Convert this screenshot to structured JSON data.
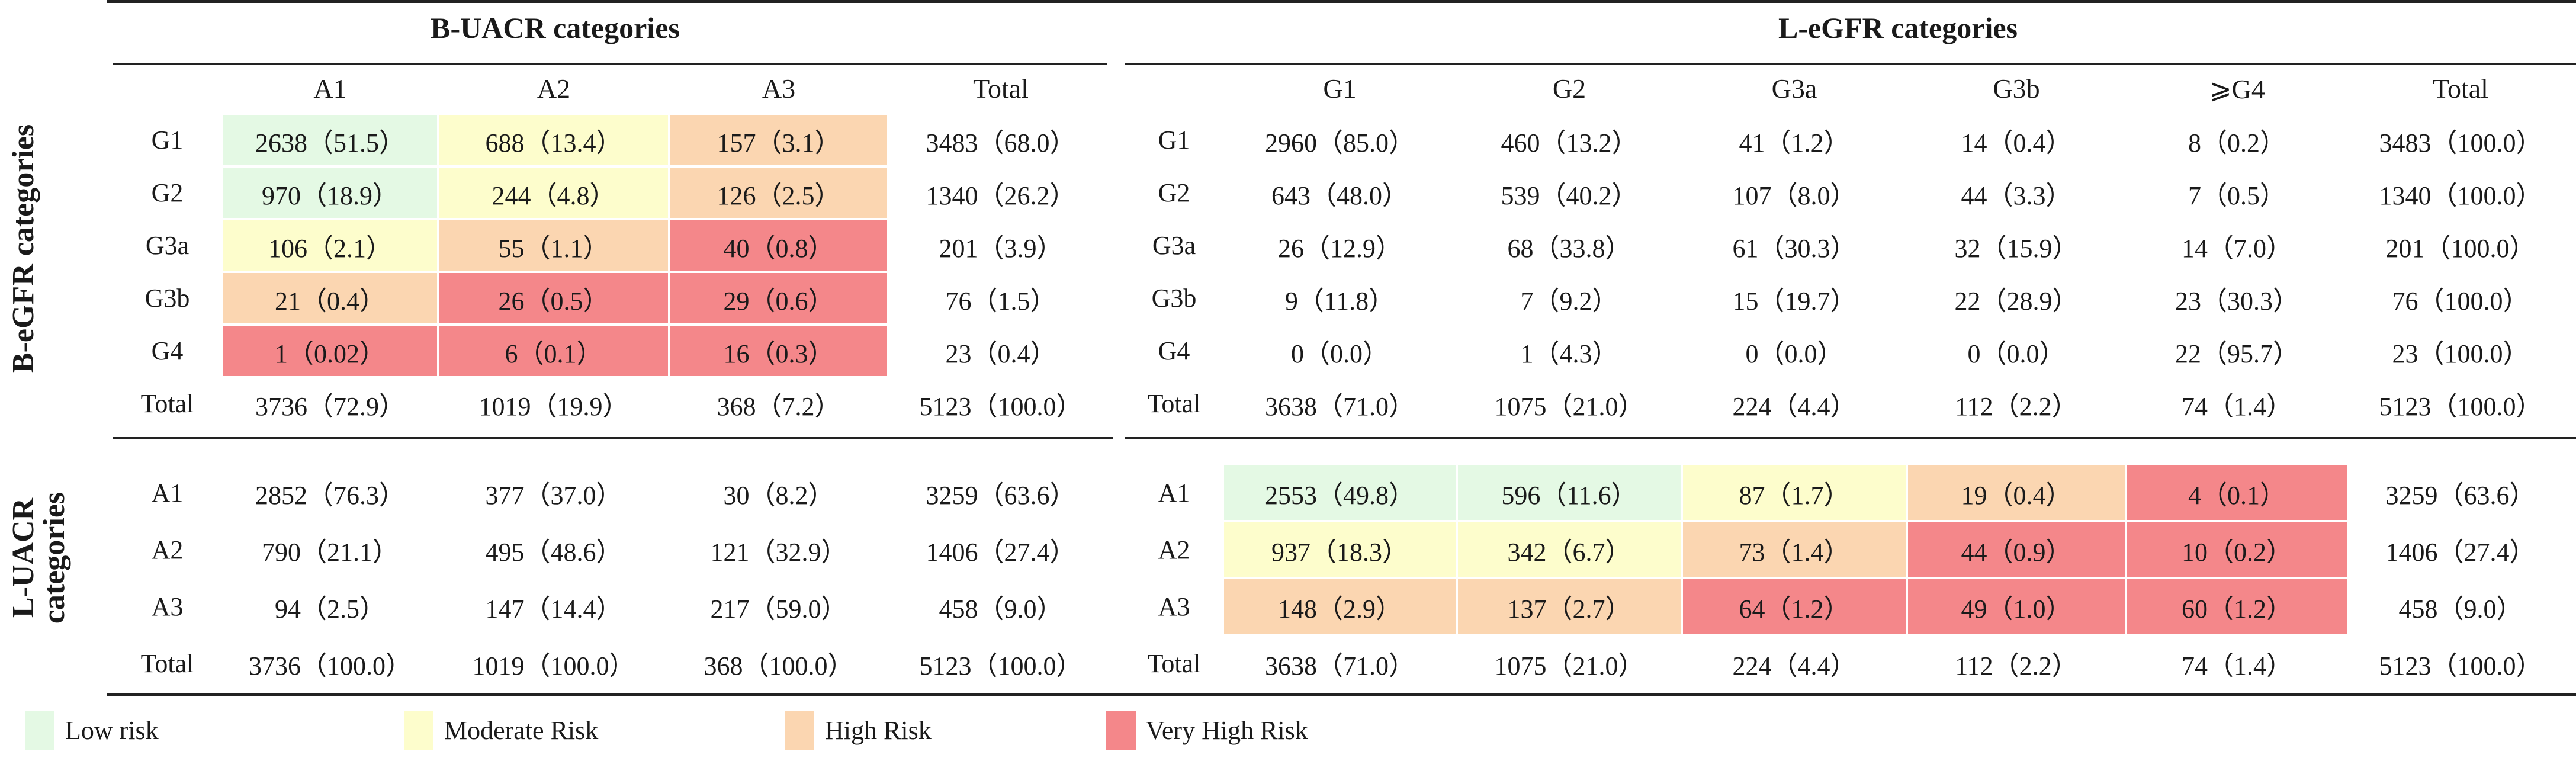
{
  "colors": {
    "low": "#e4f9e4",
    "moderate": "#fdfdcc",
    "high": "#fbd6b1",
    "very_high": "#f4878a"
  },
  "left_top": {
    "title": "B-UACR categories",
    "columns": [
      "A1",
      "A2",
      "A3",
      "Total"
    ],
    "row_group_label": "B-eGFR categories",
    "rows": [
      {
        "label": "G1",
        "cells": [
          "2638（51.5）",
          "688（13.4）",
          "157（3.1）",
          "3483（68.0）"
        ],
        "risk": [
          "low",
          "moderate",
          "high",
          ""
        ]
      },
      {
        "label": "G2",
        "cells": [
          "970（18.9）",
          "244（4.8）",
          "126（2.5）",
          "1340（26.2）"
        ],
        "risk": [
          "low",
          "moderate",
          "high",
          ""
        ]
      },
      {
        "label": "G3a",
        "cells": [
          "106（2.1）",
          "55（1.1）",
          "40（0.8）",
          "201（3.9）"
        ],
        "risk": [
          "moderate",
          "high",
          "very_high",
          ""
        ]
      },
      {
        "label": "G3b",
        "cells": [
          "21（0.4）",
          "26（0.5）",
          "29（0.6）",
          "76（1.5）"
        ],
        "risk": [
          "high",
          "very_high",
          "very_high",
          ""
        ]
      },
      {
        "label": "G4",
        "cells": [
          "1（0.02）",
          "6（0.1）",
          "16（0.3）",
          "23（0.4）"
        ],
        "risk": [
          "very_high",
          "very_high",
          "very_high",
          ""
        ]
      },
      {
        "label": "Total",
        "cells": [
          "3736（72.9）",
          "1019（19.9）",
          "368（7.2）",
          "5123（100.0）"
        ],
        "risk": [
          "",
          "",
          "",
          ""
        ]
      }
    ]
  },
  "right_top": {
    "title": "L-eGFR categories",
    "columns": [
      "G1",
      "G2",
      "G3a",
      "G3b",
      "⩾G4",
      "Total"
    ],
    "rows": [
      {
        "label": "G1",
        "cells": [
          "2960（85.0）",
          "460（13.2）",
          "41（1.2）",
          "14（0.4）",
          "8（0.2）",
          "3483（100.0）"
        ]
      },
      {
        "label": "G2",
        "cells": [
          "643（48.0）",
          "539（40.2）",
          "107（8.0）",
          "44（3.3）",
          "7（0.5）",
          "1340（100.0）"
        ]
      },
      {
        "label": "G3a",
        "cells": [
          "26（12.9）",
          "68（33.8）",
          "61（30.3）",
          "32（15.9）",
          "14（7.0）",
          "201（100.0）"
        ]
      },
      {
        "label": "G3b",
        "cells": [
          "9（11.8）",
          "7（9.2）",
          "15（19.7）",
          "22（28.9）",
          "23（30.3）",
          "76（100.0）"
        ]
      },
      {
        "label": "G4",
        "cells": [
          "0（0.0）",
          "1（4.3）",
          "0（0.0）",
          "0（0.0）",
          "22（95.7）",
          "23（100.0）"
        ]
      },
      {
        "label": "Total",
        "cells": [
          "3638（71.0）",
          "1075（21.0）",
          "224（4.4）",
          "112（2.2）",
          "74（1.4）",
          "5123（100.0）"
        ]
      }
    ]
  },
  "left_bottom": {
    "row_group_label_line1": "L-UACR",
    "row_group_label_line2": "categories",
    "rows": [
      {
        "label": "A1",
        "cells": [
          "2852（76.3）",
          "377（37.0）",
          "30（8.2）",
          "3259（63.6）"
        ]
      },
      {
        "label": "A2",
        "cells": [
          "790（21.1）",
          "495（48.6）",
          "121（32.9）",
          "1406（27.4）"
        ]
      },
      {
        "label": "A3",
        "cells": [
          "94（2.5）",
          "147（14.4）",
          "217（59.0）",
          "458（9.0）"
        ]
      },
      {
        "label": "Total",
        "cells": [
          "3736（100.0）",
          "1019（100.0）",
          "368（100.0）",
          "5123（100.0）"
        ]
      }
    ]
  },
  "right_bottom": {
    "rows": [
      {
        "label": "A1",
        "cells": [
          "2553（49.8）",
          "596（11.6）",
          "87（1.7）",
          "19（0.4）",
          "4（0.1）",
          "3259（63.6）"
        ],
        "risk": [
          "low",
          "low",
          "moderate",
          "high",
          "very_high",
          ""
        ]
      },
      {
        "label": "A2",
        "cells": [
          "937（18.3）",
          "342（6.7）",
          "73（1.4）",
          "44（0.9）",
          "10（0.2）",
          "1406（27.4）"
        ],
        "risk": [
          "moderate",
          "moderate",
          "high",
          "very_high",
          "very_high",
          ""
        ]
      },
      {
        "label": "A3",
        "cells": [
          "148（2.9）",
          "137（2.7）",
          "64（1.2）",
          "49（1.0）",
          "60（1.2）",
          "458（9.0）"
        ],
        "risk": [
          "high",
          "high",
          "very_high",
          "very_high",
          "very_high",
          ""
        ]
      },
      {
        "label": "Total",
        "cells": [
          "3638（71.0）",
          "1075（21.0）",
          "224（4.4）",
          "112（2.2）",
          "74（1.4）",
          "5123（100.0）"
        ],
        "risk": [
          "",
          "",
          "",
          "",
          "",
          ""
        ]
      }
    ]
  },
  "legend": [
    {
      "label": "Low risk",
      "risk": "low"
    },
    {
      "label": "Moderate Risk",
      "risk": "moderate"
    },
    {
      "label": "High Risk",
      "risk": "high"
    },
    {
      "label": "Very High Risk",
      "risk": "very_high"
    }
  ]
}
